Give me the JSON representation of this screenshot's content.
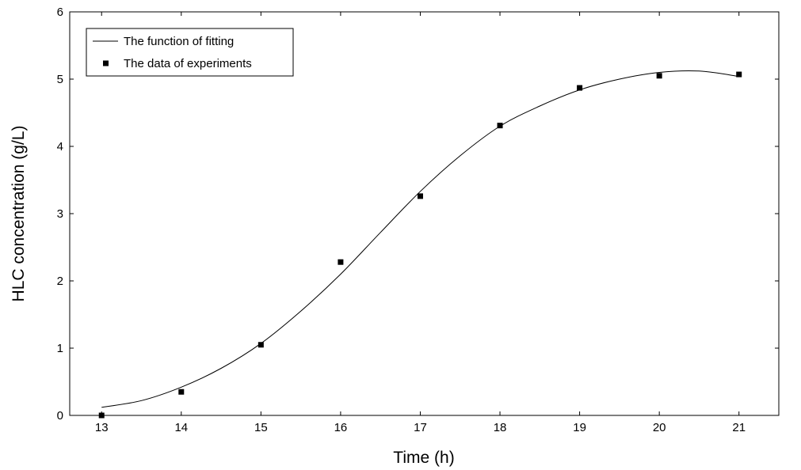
{
  "chart_data": {
    "type": "line",
    "title": "",
    "xlabel": "Time (h)",
    "ylabel": "HLC concentration (g/L)",
    "xlim": [
      12.6,
      21.5
    ],
    "ylim": [
      0,
      6
    ],
    "xticks": [
      13,
      14,
      15,
      16,
      17,
      18,
      19,
      20,
      21
    ],
    "yticks": [
      0,
      1,
      2,
      3,
      4,
      5,
      6
    ],
    "grid": false,
    "legend_position": "top-left",
    "series": [
      {
        "name": "The function of fitting",
        "style": "line",
        "color": "#000000",
        "x": [
          13,
          13.5,
          14,
          14.5,
          15,
          15.5,
          16,
          16.5,
          17,
          17.5,
          18,
          18.5,
          19,
          19.5,
          20,
          20.5,
          21
        ],
        "y": [
          0.12,
          0.22,
          0.42,
          0.7,
          1.07,
          1.55,
          2.1,
          2.72,
          3.33,
          3.86,
          4.3,
          4.6,
          4.84,
          5.0,
          5.1,
          5.12,
          5.04
        ]
      },
      {
        "name": "The data of experiments",
        "style": "marker",
        "marker": "square",
        "color": "#000000",
        "x": [
          13,
          14,
          15,
          16,
          17,
          18,
          19,
          20,
          21
        ],
        "y": [
          0.0,
          0.35,
          1.05,
          2.28,
          3.26,
          4.31,
          4.87,
          5.05,
          5.07
        ]
      }
    ]
  }
}
